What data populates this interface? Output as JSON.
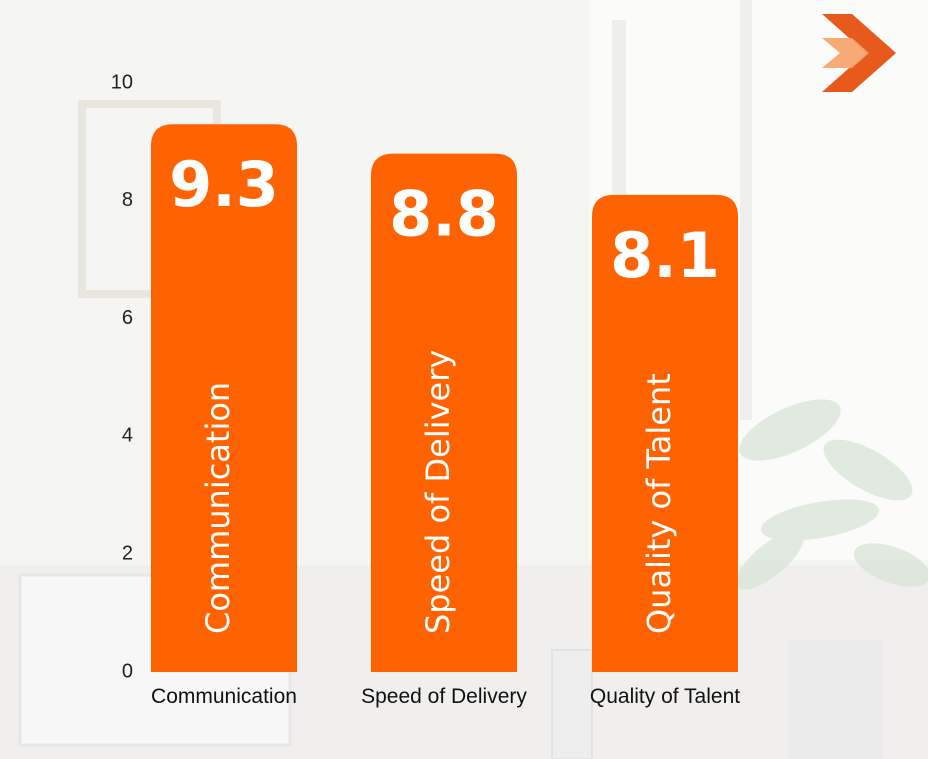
{
  "chart_data": {
    "type": "bar",
    "categories": [
      "Communication",
      "Speed of Delivery",
      "Quality of Talent"
    ],
    "values": [
      9.3,
      8.8,
      8.1
    ],
    "value_labels": [
      "9.3",
      "8.8",
      "8.1"
    ],
    "yticks": [
      "0",
      "2",
      "4",
      "6",
      "8",
      "10"
    ],
    "ylim": [
      0,
      10
    ],
    "title": "",
    "xlabel": "",
    "ylabel": "",
    "grid": false,
    "legend": "none"
  },
  "colors": {
    "bar": "#ff6200",
    "logo_dark": "#e85a1b",
    "logo_light": "#f6a56f"
  },
  "logo": {
    "icon": "chevron-logo-icon"
  }
}
